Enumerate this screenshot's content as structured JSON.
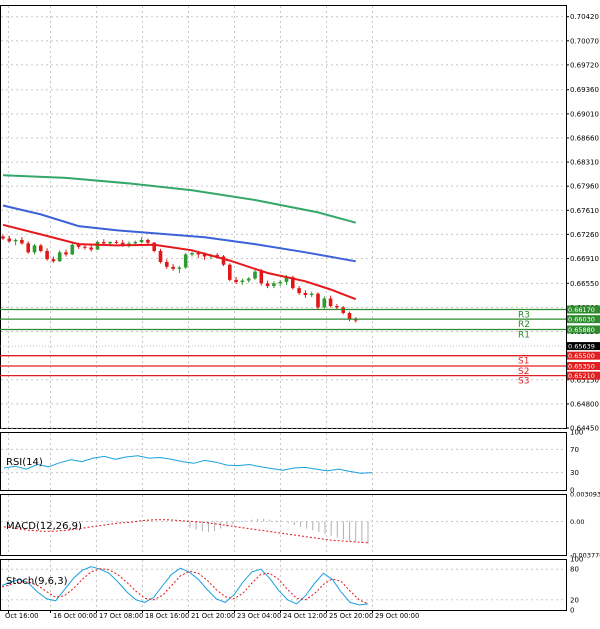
{
  "colors": {
    "grid": "#c8c8c8",
    "frame": "#000000",
    "ema_fast": "#e8171b",
    "ema_mid": "#3c62d9",
    "ema_slow": "#33a86a",
    "resistance": "#2e8b2e",
    "support": "#e02020",
    "bull": "#2f9a2f",
    "bear": "#e01818",
    "rsi": "#1aa0e0",
    "stoch_main": "#1aa0e0",
    "stoch_signal": "#e01818",
    "macd_hist": "#b0b0b0",
    "macd_signal": "#e01818",
    "price_badge": "#000000"
  },
  "chart_data": [
    {
      "type": "candlestick",
      "panel": "price",
      "ylim": [
        0.6445,
        0.7059
      ],
      "y_ticks": [
        0.7042,
        0.7007,
        0.6972,
        0.6936,
        0.6901,
        0.6866,
        0.6831,
        0.6796,
        0.6761,
        0.6726,
        0.6691,
        0.6655,
        0.662,
        0.6585,
        0.6515,
        0.648,
        0.6445
      ],
      "x_labels": [
        "Oct 16:00",
        "16 Oct 00:00",
        "17 Oct 08:00",
        "18 Oct 16:00",
        "21 Oct 20:00",
        "23 Oct 04:00",
        "24 Oct 12:00",
        "25 Oct 20:00",
        "29 Oct 00:00"
      ],
      "candles": [
        [
          0.6723,
          0.6726,
          0.6718,
          0.672
        ],
        [
          0.672,
          0.6724,
          0.6714,
          0.6716
        ],
        [
          0.6716,
          0.672,
          0.671,
          0.6718
        ],
        [
          0.6718,
          0.6722,
          0.6711,
          0.6713
        ],
        [
          0.6713,
          0.6716,
          0.6698,
          0.67
        ],
        [
          0.67,
          0.6712,
          0.6697,
          0.671
        ],
        [
          0.671,
          0.6712,
          0.67,
          0.6702
        ],
        [
          0.6702,
          0.6706,
          0.6688,
          0.669
        ],
        [
          0.669,
          0.6694,
          0.6685,
          0.6687
        ],
        [
          0.6687,
          0.6703,
          0.6686,
          0.67
        ],
        [
          0.67,
          0.6704,
          0.6694,
          0.6697
        ],
        [
          0.6697,
          0.6713,
          0.6696,
          0.6711
        ],
        [
          0.6711,
          0.6714,
          0.6705,
          0.6708
        ],
        [
          0.6708,
          0.6712,
          0.6704,
          0.6707
        ],
        [
          0.6707,
          0.671,
          0.6701,
          0.6704
        ],
        [
          0.6704,
          0.6717,
          0.6703,
          0.6715
        ],
        [
          0.6715,
          0.6719,
          0.6711,
          0.6713
        ],
        [
          0.6713,
          0.6716,
          0.6709,
          0.6715
        ],
        [
          0.6715,
          0.6718,
          0.6712,
          0.6714
        ],
        [
          0.6714,
          0.6718,
          0.6708,
          0.671
        ],
        [
          0.671,
          0.6716,
          0.6707,
          0.6713
        ],
        [
          0.6713,
          0.6717,
          0.6709,
          0.6715
        ],
        [
          0.6715,
          0.6722,
          0.6713,
          0.6718
        ],
        [
          0.6718,
          0.672,
          0.6712,
          0.6714
        ],
        [
          0.6714,
          0.6715,
          0.67,
          0.6702
        ],
        [
          0.6702,
          0.6705,
          0.6684,
          0.6686
        ],
        [
          0.6686,
          0.669,
          0.6676,
          0.6679
        ],
        [
          0.6679,
          0.6683,
          0.6673,
          0.6676
        ],
        [
          0.6676,
          0.668,
          0.667,
          0.6678
        ],
        [
          0.6678,
          0.6699,
          0.6676,
          0.6697
        ],
        [
          0.6697,
          0.6701,
          0.6694,
          0.6699
        ],
        [
          0.6699,
          0.6702,
          0.6692,
          0.6697
        ],
        [
          0.6697,
          0.67,
          0.6689,
          0.6694
        ],
        [
          0.6694,
          0.6698,
          0.669,
          0.6696
        ],
        [
          0.6696,
          0.6699,
          0.6692,
          0.6694
        ],
        [
          0.6694,
          0.6696,
          0.668,
          0.6682
        ],
        [
          0.6682,
          0.6684,
          0.6658,
          0.666
        ],
        [
          0.666,
          0.6664,
          0.6654,
          0.6657
        ],
        [
          0.6657,
          0.6662,
          0.6653,
          0.6659
        ],
        [
          0.6659,
          0.6664,
          0.6656,
          0.6662
        ],
        [
          0.6662,
          0.6676,
          0.666,
          0.6672
        ],
        [
          0.6672,
          0.6676,
          0.6652,
          0.6655
        ],
        [
          0.6655,
          0.6659,
          0.6648,
          0.6651
        ],
        [
          0.6651,
          0.6658,
          0.6648,
          0.6655
        ],
        [
          0.6655,
          0.666,
          0.6651,
          0.6657
        ],
        [
          0.6657,
          0.6667,
          0.6653,
          0.6664
        ],
        [
          0.6664,
          0.6666,
          0.6646,
          0.6648
        ],
        [
          0.6648,
          0.6651,
          0.6638,
          0.6641
        ],
        [
          0.6641,
          0.6645,
          0.6634,
          0.6638
        ],
        [
          0.6638,
          0.6643,
          0.6635,
          0.664
        ],
        [
          0.664,
          0.6642,
          0.6617,
          0.662
        ],
        [
          0.662,
          0.6636,
          0.6618,
          0.6633
        ],
        [
          0.6633,
          0.6637,
          0.662,
          0.6622
        ],
        [
          0.6622,
          0.6625,
          0.6617,
          0.662
        ],
        [
          0.662,
          0.6622,
          0.661,
          0.6612
        ],
        [
          0.6612,
          0.6614,
          0.66,
          0.6603
        ],
        [
          0.6603,
          0.6606,
          0.6598,
          0.6601
        ]
      ],
      "moving_averages": [
        {
          "color_key": "ema_slow",
          "points": [
            [
              0,
              0.6812
            ],
            [
              10,
              0.6808
            ],
            [
              20,
              0.68
            ],
            [
              30,
              0.679
            ],
            [
              40,
              0.6776
            ],
            [
              50,
              0.6758
            ],
            [
              56,
              0.6743
            ]
          ]
        },
        {
          "color_key": "ema_mid",
          "points": [
            [
              0,
              0.6768
            ],
            [
              6,
              0.6755
            ],
            [
              12,
              0.6738
            ],
            [
              18,
              0.6732
            ],
            [
              25,
              0.6727
            ],
            [
              32,
              0.6722
            ],
            [
              40,
              0.6712
            ],
            [
              48,
              0.67
            ],
            [
              56,
              0.6687
            ]
          ]
        },
        {
          "color_key": "ema_fast",
          "points": [
            [
              0,
              0.674
            ],
            [
              6,
              0.6726
            ],
            [
              12,
              0.6712
            ],
            [
              18,
              0.671
            ],
            [
              24,
              0.6711
            ],
            [
              30,
              0.6703
            ],
            [
              36,
              0.6688
            ],
            [
              42,
              0.667
            ],
            [
              48,
              0.6658
            ],
            [
              52,
              0.6646
            ],
            [
              56,
              0.6632
            ]
          ]
        }
      ],
      "levels": [
        {
          "label": "R3",
          "value_text": "0.66170",
          "value": 0.6617,
          "color_key": "resistance"
        },
        {
          "label": "R2",
          "value_text": "0.66030",
          "value": 0.6603,
          "color_key": "resistance"
        },
        {
          "label": "R1",
          "value_text": "0.65880",
          "value": 0.6588,
          "color_key": "resistance"
        },
        {
          "label": "S1",
          "value_text": "0.65500",
          "value": 0.655,
          "color_key": "support"
        },
        {
          "label": "S2",
          "value_text": "0.65350",
          "value": 0.6535,
          "color_key": "support"
        },
        {
          "label": "S3",
          "value_text": "0.65210",
          "value": 0.6521,
          "color_key": "support"
        }
      ],
      "current_price": {
        "value": 0.65639,
        "value_text": "0.65639"
      }
    },
    {
      "type": "line",
      "panel": "rsi",
      "title": "RSI(14)",
      "ylim": [
        0,
        100
      ],
      "y_ticks": [
        100,
        70,
        30,
        0
      ],
      "values": [
        38,
        41,
        36,
        44,
        40,
        47,
        52,
        49,
        55,
        58,
        53,
        57,
        59,
        55,
        56,
        53,
        49,
        46,
        51,
        48,
        43,
        42,
        44,
        40,
        37,
        34,
        38,
        39,
        36,
        33,
        36,
        32,
        29,
        30
      ]
    },
    {
      "type": "bar",
      "panel": "macd",
      "title": "MACD(12,26,9)",
      "y_tick_labels": [
        "0.003093",
        "0.00",
        "-0.003776"
      ],
      "ylim": [
        -0.003776,
        0.003093
      ],
      "histogram": [
        -0.0007,
        -0.0009,
        -0.0011,
        -0.0012,
        -0.0011,
        -0.0008,
        -0.0006,
        -0.0003,
        -0.0001,
        0.0001,
        0.0002,
        0.0003,
        0.0003,
        0.0002,
        0.0001,
        0.0,
        -0.0002,
        -0.0004,
        -0.0006,
        -0.0008,
        -0.001,
        -0.0012,
        -0.0014,
        -0.0016,
        -0.0018,
        -0.002,
        -0.0022,
        -0.0023,
        -0.0024,
        -0.0025
      ],
      "signal": [
        -0.0006,
        -0.0008,
        -0.001,
        -0.0011,
        -0.0011,
        -0.001,
        -0.0008,
        -0.0006,
        -0.0004,
        -0.0002,
        -0.0001,
        0.0001,
        0.0002,
        0.0002,
        0.0001,
        0.0,
        -0.0001,
        -0.0003,
        -0.0005,
        -0.0007,
        -0.0009,
        -0.0011,
        -0.0013,
        -0.0015,
        -0.0017,
        -0.0019,
        -0.0021,
        -0.0022,
        -0.0023,
        -0.0024
      ]
    },
    {
      "type": "line",
      "panel": "stoch",
      "title": "Stoch(9,6,3)",
      "ylim": [
        0,
        100
      ],
      "y_ticks": [
        100,
        80,
        20,
        0
      ],
      "main": [
        48,
        55,
        60,
        52,
        35,
        22,
        18,
        40,
        62,
        78,
        85,
        80,
        72,
        55,
        35,
        20,
        15,
        25,
        48,
        70,
        82,
        74,
        60,
        40,
        22,
        15,
        30,
        55,
        75,
        80,
        62,
        38,
        20,
        12,
        28,
        52,
        72,
        60,
        35,
        15,
        10,
        12
      ],
      "signal": [
        45,
        50,
        55,
        55,
        48,
        36,
        25,
        28,
        42,
        60,
        75,
        81,
        79,
        69,
        54,
        37,
        23,
        20,
        29,
        48,
        67,
        76,
        72,
        58,
        40,
        26,
        22,
        33,
        53,
        70,
        72,
        60,
        40,
        23,
        20,
        32,
        50,
        61,
        56,
        37,
        20,
        12
      ]
    }
  ]
}
